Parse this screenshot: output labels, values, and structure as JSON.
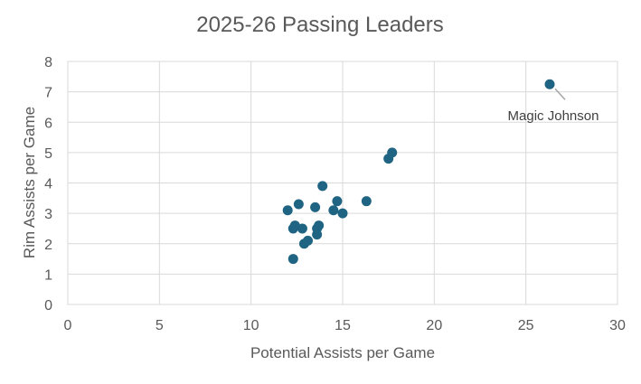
{
  "chart_data": {
    "type": "scatter",
    "title": "2025-26 Passing Leaders",
    "xlabel": "Potential Assists per Game",
    "ylabel": "Rim Assists per Game",
    "xlim": [
      0,
      30
    ],
    "ylim": [
      0,
      8
    ],
    "xticks": [
      0,
      5,
      10,
      15,
      20,
      25,
      30
    ],
    "yticks": [
      0,
      1,
      2,
      3,
      4,
      5,
      6,
      7,
      8
    ],
    "grid": true,
    "marker_color": "#1f6482",
    "series": [
      {
        "points": [
          {
            "x": 12.0,
            "y": 3.1
          },
          {
            "x": 12.3,
            "y": 2.5
          },
          {
            "x": 12.4,
            "y": 2.6
          },
          {
            "x": 12.3,
            "y": 1.5
          },
          {
            "x": 12.6,
            "y": 3.3
          },
          {
            "x": 12.8,
            "y": 2.5
          },
          {
            "x": 12.9,
            "y": 2.0
          },
          {
            "x": 13.1,
            "y": 2.1
          },
          {
            "x": 13.5,
            "y": 3.2
          },
          {
            "x": 13.6,
            "y": 2.3
          },
          {
            "x": 13.6,
            "y": 2.5
          },
          {
            "x": 13.7,
            "y": 2.6
          },
          {
            "x": 13.9,
            "y": 3.9
          },
          {
            "x": 14.5,
            "y": 3.1
          },
          {
            "x": 14.7,
            "y": 3.4
          },
          {
            "x": 15.0,
            "y": 3.0
          },
          {
            "x": 16.3,
            "y": 3.4
          },
          {
            "x": 17.5,
            "y": 4.8
          },
          {
            "x": 17.7,
            "y": 5.0
          },
          {
            "x": 26.3,
            "y": 7.25
          }
        ]
      }
    ],
    "annotations": [
      {
        "text": "Magic Johnson",
        "x": 26.3,
        "y": 7.25
      }
    ]
  }
}
